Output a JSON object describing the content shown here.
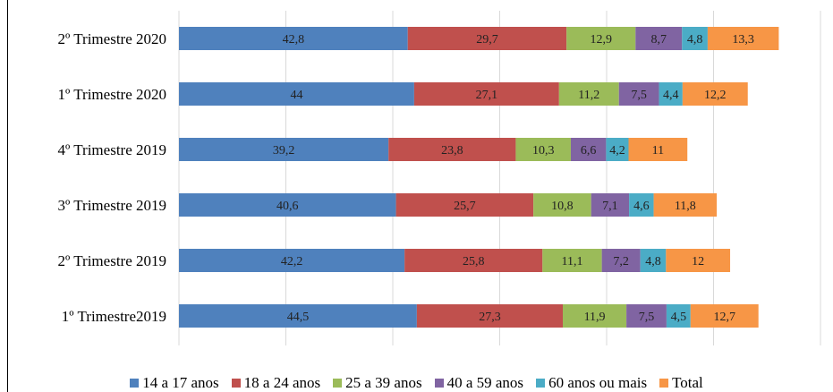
{
  "chart_data": {
    "type": "bar",
    "orientation": "horizontal",
    "stacked": true,
    "title": "",
    "xlabel": "",
    "ylabel": "",
    "xlim": [
      0,
      120
    ],
    "grid": "vertical",
    "legend_position": "bottom",
    "categories": [
      "2º Trimestre 2020",
      "1º Trimestre 2020",
      "4º Trimestre 2019",
      "3º Trimestre 2019",
      "2º Trimestre 2019",
      "1º Trimestre2019"
    ],
    "labels": [
      [
        "42,8",
        "29,7",
        "12,9",
        "8,7",
        "4,8",
        "13,3"
      ],
      [
        "44",
        "27,1",
        "11,2",
        "7,5",
        "4,4",
        "12,2"
      ],
      [
        "39,2",
        "23,8",
        "10,3",
        "6,6",
        "4,2",
        "11"
      ],
      [
        "40,6",
        "25,7",
        "10,8",
        "7,1",
        "4,6",
        "11,8"
      ],
      [
        "42,2",
        "25,8",
        "11,1",
        "7,2",
        "4,8",
        "12"
      ],
      [
        "44,5",
        "27,3",
        "11,9",
        "7,5",
        "4,5",
        "12,7"
      ]
    ],
    "series": [
      {
        "name": "14 a 17 anos",
        "color": "#4f81bd",
        "values": [
          42.8,
          44,
          39.2,
          40.6,
          42.2,
          44.5
        ]
      },
      {
        "name": "18 a 24 anos",
        "color": "#c0504d",
        "values": [
          29.7,
          27.1,
          23.8,
          25.7,
          25.8,
          27.3
        ]
      },
      {
        "name": "25 a 39 anos",
        "color": "#9bbb59",
        "values": [
          12.9,
          11.2,
          10.3,
          10.8,
          11.1,
          11.9
        ]
      },
      {
        "name": "40 a 59 anos",
        "color": "#8064a2",
        "values": [
          8.7,
          7.5,
          6.6,
          7.1,
          7.2,
          7.5
        ]
      },
      {
        "name": "60 anos ou mais",
        "color": "#4bacc6",
        "values": [
          4.8,
          4.4,
          4.2,
          4.6,
          4.8,
          4.5
        ]
      },
      {
        "name": "Total",
        "color": "#f79646",
        "values": [
          13.3,
          12.2,
          11,
          11.8,
          12,
          12.7
        ]
      }
    ]
  }
}
